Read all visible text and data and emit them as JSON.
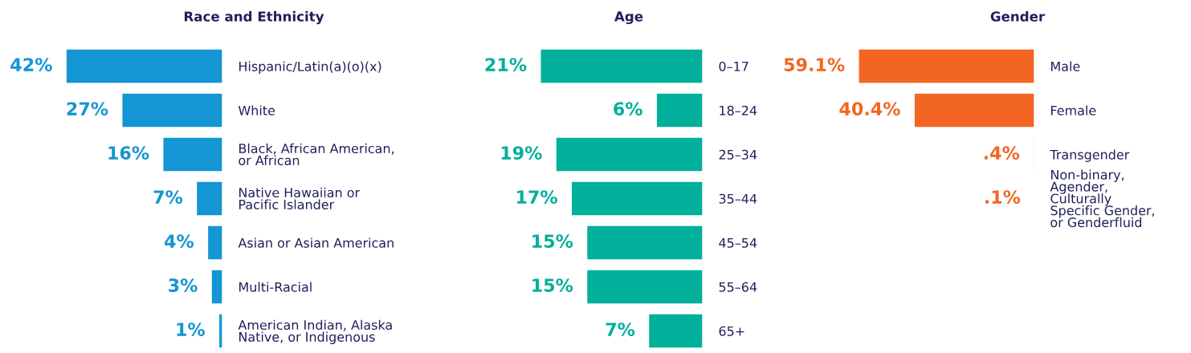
{
  "chart_data": [
    {
      "type": "bar",
      "orientation": "horizontal",
      "title": "Race and Ethnicity",
      "categories": [
        "Hispanic/Latin(a)(o)(x)",
        "White",
        "Black, African American,\nor African",
        "Native Hawaiian or\nPacific Islander",
        "Asian or Asian American",
        "Multi-Racial",
        "American Indian, Alaska\nNative, or Indigenous"
      ],
      "values": [
        42,
        27,
        16,
        7,
        4,
        3,
        1
      ],
      "value_labels": [
        "42%",
        "27%",
        "16%",
        "7%",
        "4%",
        "3%",
        "1%"
      ],
      "color": "#1396d3"
    },
    {
      "type": "bar",
      "orientation": "horizontal",
      "title": "Age",
      "categories": [
        "0–17",
        "18–24",
        "25–34",
        "35–44",
        "45–54",
        "55–64",
        "65+"
      ],
      "values": [
        21,
        6,
        19,
        17,
        15,
        15,
        7
      ],
      "value_labels": [
        "21%",
        "6%",
        "19%",
        "17%",
        "15%",
        "15%",
        "7%"
      ],
      "color": "#00b09b"
    },
    {
      "type": "bar",
      "orientation": "horizontal",
      "title": "Gender",
      "categories": [
        "Male",
        "Female",
        "Transgender",
        "Non-binary,\nAgender,\nCulturally\nSpecific Gender,\nor Genderfluid"
      ],
      "values": [
        59.1,
        40.4,
        0.4,
        0.1
      ],
      "value_labels": [
        "59.1%",
        "40.4%",
        ".4%",
        ".1%"
      ],
      "color": "#f26522"
    }
  ]
}
